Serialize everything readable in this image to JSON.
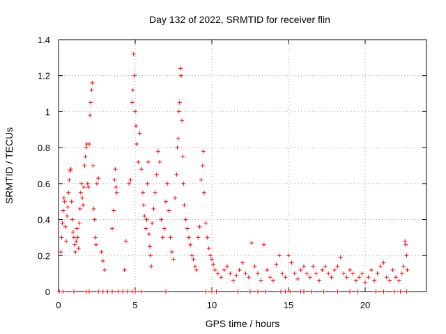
{
  "chart_data": {
    "type": "scatter",
    "title": "Day 132 of 2022, SRMTID for receiver flin",
    "xlabel": "GPS time / hours",
    "ylabel": "SRMTID / TECUs",
    "xlim": [
      0,
      24
    ],
    "ylim": [
      0,
      1.4
    ],
    "grid": true,
    "marker": "+",
    "color": "#ff0000",
    "x_ticks": [
      0,
      5,
      10,
      15,
      20
    ],
    "x_tick_labels": [
      "0",
      "5",
      "10",
      "15",
      "20"
    ],
    "y_ticks": [
      0,
      0.2,
      0.4,
      0.6,
      0.8,
      1.0,
      1.2,
      1.4
    ],
    "y_tick_labels": [
      "0",
      "0.2",
      "0.4",
      "0.6",
      "0.8",
      "1",
      "1.2",
      "1.4"
    ],
    "series": [
      {
        "name": "SRMTID",
        "points": [
          [
            0.15,
            0.22
          ],
          [
            0.2,
            0.3
          ],
          [
            0.25,
            0.38
          ],
          [
            0.3,
            0.45
          ],
          [
            0.35,
            0.52
          ],
          [
            0.4,
            0.5
          ],
          [
            0.45,
            0.36
          ],
          [
            0.5,
            0.28
          ],
          [
            0.55,
            0.42
          ],
          [
            0.6,
            0.47
          ],
          [
            0.65,
            0.55
          ],
          [
            0.7,
            0.62
          ],
          [
            0.75,
            0.67
          ],
          [
            0.8,
            0.68
          ],
          [
            0.85,
            0.5
          ],
          [
            0.9,
            0.4
          ],
          [
            0.95,
            0.33
          ],
          [
            1.0,
            0.3
          ],
          [
            1.05,
            0.26
          ],
          [
            1.1,
            0.22
          ],
          [
            1.15,
            0.28
          ],
          [
            1.2,
            0.35
          ],
          [
            1.25,
            0.3
          ],
          [
            1.3,
            0.24
          ],
          [
            1.35,
            0.38
          ],
          [
            1.4,
            0.46
          ],
          [
            1.45,
            0.55
          ],
          [
            1.5,
            0.6
          ],
          [
            1.55,
            0.52
          ],
          [
            1.6,
            0.48
          ],
          [
            1.65,
            0.58
          ],
          [
            1.7,
            0.7
          ],
          [
            1.75,
            0.75
          ],
          [
            1.8,
            0.8
          ],
          [
            1.85,
            0.82
          ],
          [
            1.9,
            0.6
          ],
          [
            1.95,
            0.58
          ],
          [
            2.0,
            0.82
          ],
          [
            2.05,
            0.98
          ],
          [
            2.1,
            1.05
          ],
          [
            2.15,
            1.12
          ],
          [
            2.2,
            1.16
          ],
          [
            2.25,
            0.7
          ],
          [
            2.3,
            0.46
          ],
          [
            2.35,
            0.4
          ],
          [
            2.4,
            0.3
          ],
          [
            2.45,
            0.26
          ],
          [
            2.5,
            0.6
          ],
          [
            2.6,
            0.63
          ],
          [
            2.8,
            0.22
          ],
          [
            2.9,
            0.17
          ],
          [
            3.0,
            0.12
          ],
          [
            3.5,
            0.35
          ],
          [
            3.6,
            0.45
          ],
          [
            3.65,
            0.62
          ],
          [
            3.7,
            0.68
          ],
          [
            3.75,
            0.58
          ],
          [
            3.8,
            0.55
          ],
          [
            4.3,
            0.12
          ],
          [
            4.4,
            0.28
          ],
          [
            4.6,
            0.6
          ],
          [
            4.7,
            0.62
          ],
          [
            4.8,
            1.05
          ],
          [
            4.85,
            1.12
          ],
          [
            4.9,
            1.32
          ],
          [
            4.95,
            1.2
          ],
          [
            5.0,
            1.0
          ],
          [
            5.05,
            0.92
          ],
          [
            5.1,
            0.82
          ],
          [
            5.2,
            0.72
          ],
          [
            5.3,
            0.88
          ],
          [
            5.4,
            0.68
          ],
          [
            5.5,
            0.55
          ],
          [
            5.55,
            0.48
          ],
          [
            5.6,
            0.42
          ],
          [
            5.7,
            0.35
          ],
          [
            5.75,
            0.4
          ],
          [
            5.8,
            0.6
          ],
          [
            5.85,
            0.72
          ],
          [
            5.9,
            0.32
          ],
          [
            5.95,
            0.25
          ],
          [
            6.0,
            0.2
          ],
          [
            6.05,
            0.14
          ],
          [
            6.1,
            0.38
          ],
          [
            6.2,
            0.46
          ],
          [
            6.3,
            0.55
          ],
          [
            6.4,
            0.65
          ],
          [
            6.5,
            0.78
          ],
          [
            6.6,
            0.72
          ],
          [
            6.7,
            0.4
          ],
          [
            6.8,
            0.3
          ],
          [
            6.9,
            0.35
          ],
          [
            7.0,
            0.5
          ],
          [
            7.1,
            0.6
          ],
          [
            7.2,
            0.45
          ],
          [
            7.3,
            0.3
          ],
          [
            7.4,
            0.22
          ],
          [
            7.5,
            0.18
          ],
          [
            7.6,
            0.52
          ],
          [
            7.7,
            0.65
          ],
          [
            7.75,
            0.8
          ],
          [
            7.8,
            0.85
          ],
          [
            7.85,
            1.0
          ],
          [
            7.9,
            1.05
          ],
          [
            7.95,
            1.24
          ],
          [
            8.0,
            1.2
          ],
          [
            8.05,
            0.95
          ],
          [
            8.1,
            0.75
          ],
          [
            8.15,
            0.6
          ],
          [
            8.2,
            0.48
          ],
          [
            8.3,
            0.4
          ],
          [
            8.4,
            0.35
          ],
          [
            8.5,
            0.3
          ],
          [
            8.6,
            0.26
          ],
          [
            8.7,
            0.2
          ],
          [
            8.8,
            0.18
          ],
          [
            8.9,
            0.14
          ],
          [
            9.0,
            0.12
          ],
          [
            9.1,
            0.3
          ],
          [
            9.2,
            0.36
          ],
          [
            9.3,
            0.62
          ],
          [
            9.4,
            0.7
          ],
          [
            9.45,
            0.78
          ],
          [
            9.5,
            0.55
          ],
          [
            9.6,
            0.38
          ],
          [
            9.7,
            0.3
          ],
          [
            9.8,
            0.24
          ],
          [
            9.9,
            0.2
          ],
          [
            10.0,
            0.18
          ],
          [
            10.1,
            0.15
          ],
          [
            10.2,
            0.12
          ],
          [
            10.4,
            0.1
          ],
          [
            10.6,
            0.08
          ],
          [
            10.8,
            0.12
          ],
          [
            11.0,
            0.14
          ],
          [
            11.2,
            0.1
          ],
          [
            11.4,
            0.06
          ],
          [
            11.6,
            0.09
          ],
          [
            11.8,
            0.12
          ],
          [
            12.0,
            0.16
          ],
          [
            12.2,
            0.1
          ],
          [
            12.4,
            0.08
          ],
          [
            12.6,
            0.27
          ],
          [
            12.8,
            0.14
          ],
          [
            13.0,
            0.1
          ],
          [
            13.2,
            0.06
          ],
          [
            13.4,
            0.26
          ],
          [
            13.6,
            0.12
          ],
          [
            13.8,
            0.08
          ],
          [
            14.0,
            0.06
          ],
          [
            14.2,
            0.15
          ],
          [
            14.4,
            0.2
          ],
          [
            14.6,
            0.1
          ],
          [
            14.8,
            0.08
          ],
          [
            15.0,
            0.2
          ],
          [
            15.2,
            0.16
          ],
          [
            15.4,
            0.1
          ],
          [
            15.6,
            0.07
          ],
          [
            15.8,
            0.12
          ],
          [
            16.0,
            0.14
          ],
          [
            16.2,
            0.1
          ],
          [
            16.4,
            0.08
          ],
          [
            16.6,
            0.14
          ],
          [
            16.8,
            0.1
          ],
          [
            17.0,
            0.06
          ],
          [
            17.2,
            0.12
          ],
          [
            17.4,
            0.14
          ],
          [
            17.6,
            0.1
          ],
          [
            17.8,
            0.08
          ],
          [
            18.0,
            0.12
          ],
          [
            18.2,
            0.14
          ],
          [
            18.4,
            0.19
          ],
          [
            18.6,
            0.1
          ],
          [
            18.8,
            0.08
          ],
          [
            19.0,
            0.12
          ],
          [
            19.2,
            0.1
          ],
          [
            19.4,
            0.06
          ],
          [
            19.6,
            0.08
          ],
          [
            19.8,
            0.1
          ],
          [
            20.0,
            0.05
          ],
          [
            20.2,
            0.08
          ],
          [
            20.4,
            0.12
          ],
          [
            20.6,
            0.06
          ],
          [
            20.8,
            0.1
          ],
          [
            21.0,
            0.14
          ],
          [
            21.2,
            0.16
          ],
          [
            21.4,
            0.08
          ],
          [
            21.6,
            0.06
          ],
          [
            21.8,
            0.12
          ],
          [
            22.0,
            0.08
          ],
          [
            22.2,
            0.06
          ],
          [
            22.4,
            0.1
          ],
          [
            22.5,
            0.14
          ],
          [
            22.6,
            0.28
          ],
          [
            22.65,
            0.26
          ],
          [
            22.7,
            0.2
          ],
          [
            22.75,
            0.12
          ],
          [
            0.05,
            0.0
          ],
          [
            0.3,
            0.0
          ],
          [
            1.0,
            0.0
          ],
          [
            1.8,
            0.0
          ],
          [
            2.0,
            0.0
          ],
          [
            2.6,
            0.0
          ],
          [
            2.9,
            0.0
          ],
          [
            3.2,
            0.0
          ],
          [
            3.5,
            0.0
          ],
          [
            3.9,
            0.0
          ],
          [
            4.2,
            0.0
          ],
          [
            4.5,
            0.0
          ],
          [
            4.8,
            0.0
          ],
          [
            5.0,
            0.0
          ],
          [
            5.4,
            0.0
          ],
          [
            7.0,
            0.0
          ],
          [
            9.6,
            0.0
          ],
          [
            10.0,
            0.0
          ],
          [
            10.3,
            0.0
          ],
          [
            11.7,
            0.0
          ],
          [
            12.5,
            0.0
          ],
          [
            13.0,
            0.0
          ],
          [
            13.5,
            0.0
          ],
          [
            14.5,
            0.0
          ],
          [
            14.8,
            0.0
          ],
          [
            15.1,
            0.0
          ],
          [
            15.8,
            0.0
          ],
          [
            16.0,
            0.0
          ],
          [
            16.5,
            0.0
          ],
          [
            17.3,
            0.0
          ],
          [
            18.2,
            0.0
          ],
          [
            19.0,
            0.0
          ],
          [
            19.5,
            0.0
          ],
          [
            20.7,
            0.0
          ],
          [
            21.2,
            0.0
          ],
          [
            21.9,
            0.0
          ],
          [
            22.3,
            0.0
          ],
          [
            22.7,
            0.0
          ]
        ]
      }
    ]
  }
}
